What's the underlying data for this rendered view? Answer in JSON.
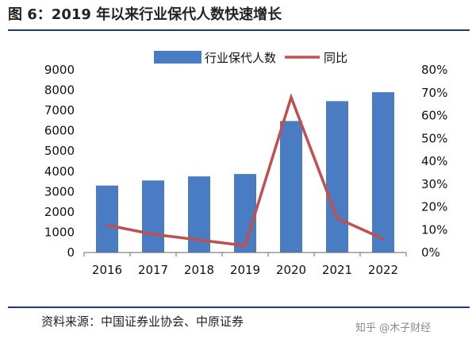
{
  "title": "图 6：2019 年以来行业保代人数快速增长",
  "source": "资料来源：中国证券业协会、中原证券",
  "watermark": "知乎 @木子财经",
  "colors": {
    "bar": "#4a7cc4",
    "line": "#c0504d",
    "rule": "#1a3a7a"
  },
  "chart_data": {
    "type": "bar",
    "categories": [
      "2016",
      "2017",
      "2018",
      "2019",
      "2020",
      "2021",
      "2022"
    ],
    "series": [
      {
        "name": "行业保代人数",
        "type": "bar",
        "axis": "left",
        "values": [
          3300,
          3550,
          3750,
          3870,
          6480,
          7460,
          7900
        ]
      },
      {
        "name": "同比",
        "type": "line",
        "axis": "right",
        "values": [
          12,
          8,
          5.5,
          3,
          68,
          15,
          6
        ]
      }
    ],
    "ylim": [
      0,
      9000
    ],
    "y_ticks": [
      "0",
      "1000",
      "2000",
      "3000",
      "4000",
      "5000",
      "6000",
      "7000",
      "8000",
      "9000"
    ],
    "y2lim": [
      0,
      80
    ],
    "y2_ticks": [
      "0%",
      "10%",
      "20%",
      "30%",
      "40%",
      "50%",
      "60%",
      "70%",
      "80%"
    ],
    "legend": "top-center",
    "grid": false
  }
}
